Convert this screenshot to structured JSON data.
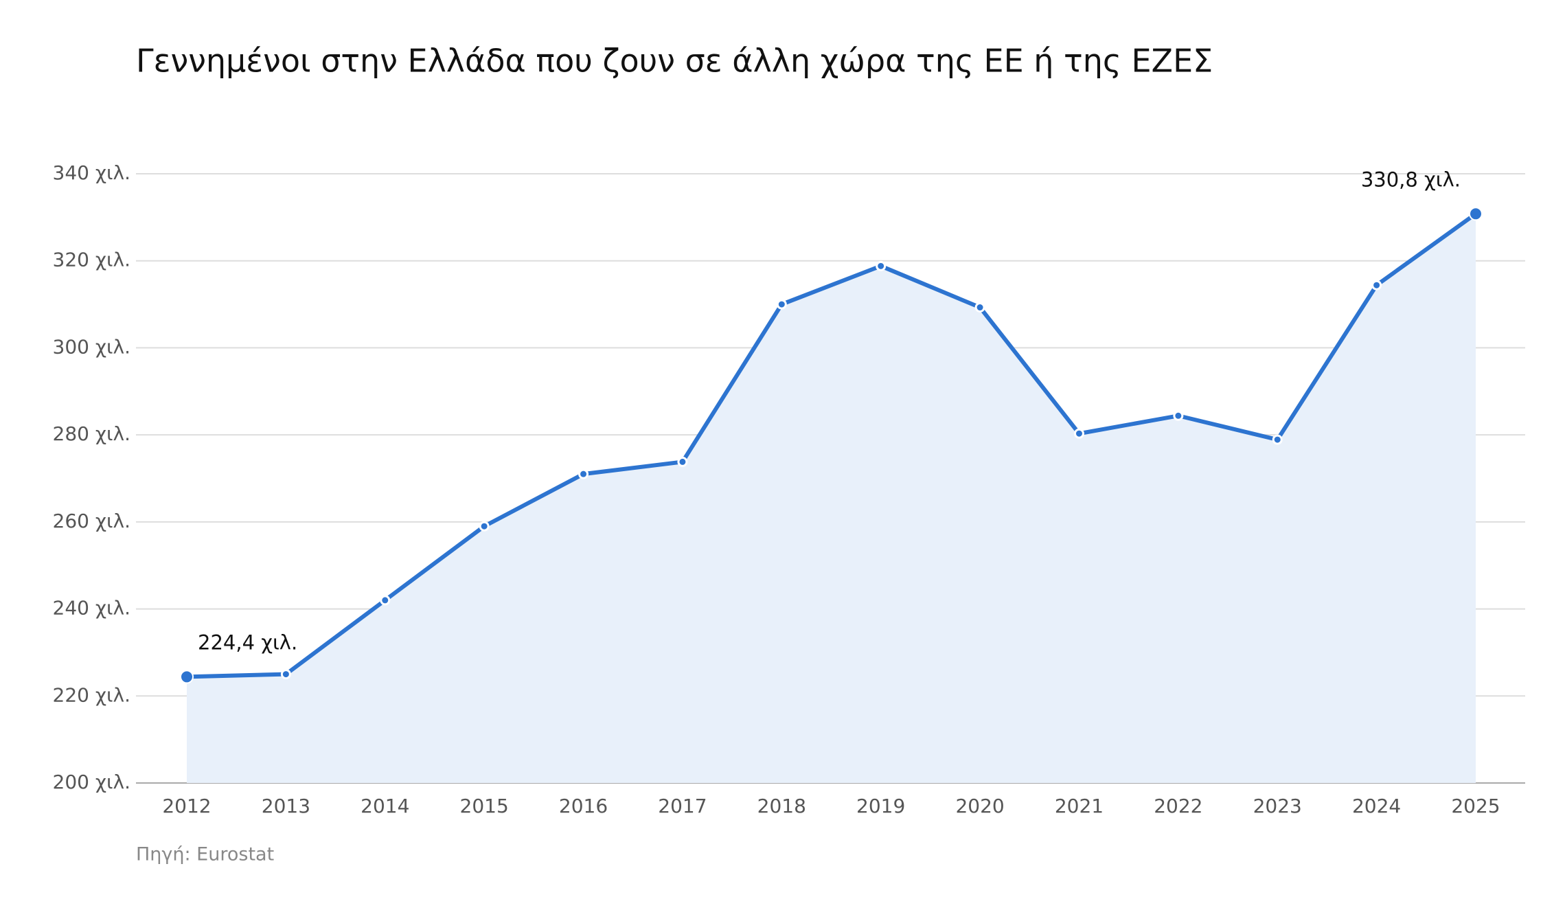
{
  "chart_data": {
    "type": "line",
    "title": "Γεννημένοι στην Ελλάδα που ζουν σε άλλη χώρα της ΕΕ ή της ΕΖΕΣ",
    "source": "Πηγή: Eurostat",
    "categories": [
      "2012",
      "2013",
      "2014",
      "2015",
      "2016",
      "2017",
      "2018",
      "2019",
      "2020",
      "2021",
      "2022",
      "2023",
      "2024",
      "2025"
    ],
    "series": [
      {
        "name": "Γεννημένοι στην Ελλάδα",
        "color": "#2d74d0",
        "values": [
          224.4,
          225.0,
          242.0,
          259.0,
          271.0,
          273.8,
          310.0,
          318.8,
          309.3,
          280.3,
          284.4,
          278.9,
          314.4,
          330.8
        ],
        "value_labels": [
          "224,4 χιλ.",
          null,
          null,
          null,
          null,
          null,
          null,
          null,
          null,
          null,
          null,
          null,
          null,
          "330,8 χιλ."
        ]
      }
    ],
    "area_color": "#e8f0fa",
    "ylim": [
      200,
      340
    ],
    "yticks": [
      {
        "value": 200,
        "label": "200 χιλ."
      },
      {
        "value": 220,
        "label": "220 χιλ."
      },
      {
        "value": 240,
        "label": "240 χιλ."
      },
      {
        "value": 260,
        "label": "260 χιλ."
      },
      {
        "value": 280,
        "label": "280 χιλ."
      },
      {
        "value": 300,
        "label": "300 χιλ."
      },
      {
        "value": 320,
        "label": "320 χιλ."
      },
      {
        "value": 340,
        "label": "340 χιλ."
      }
    ],
    "grid": true
  }
}
